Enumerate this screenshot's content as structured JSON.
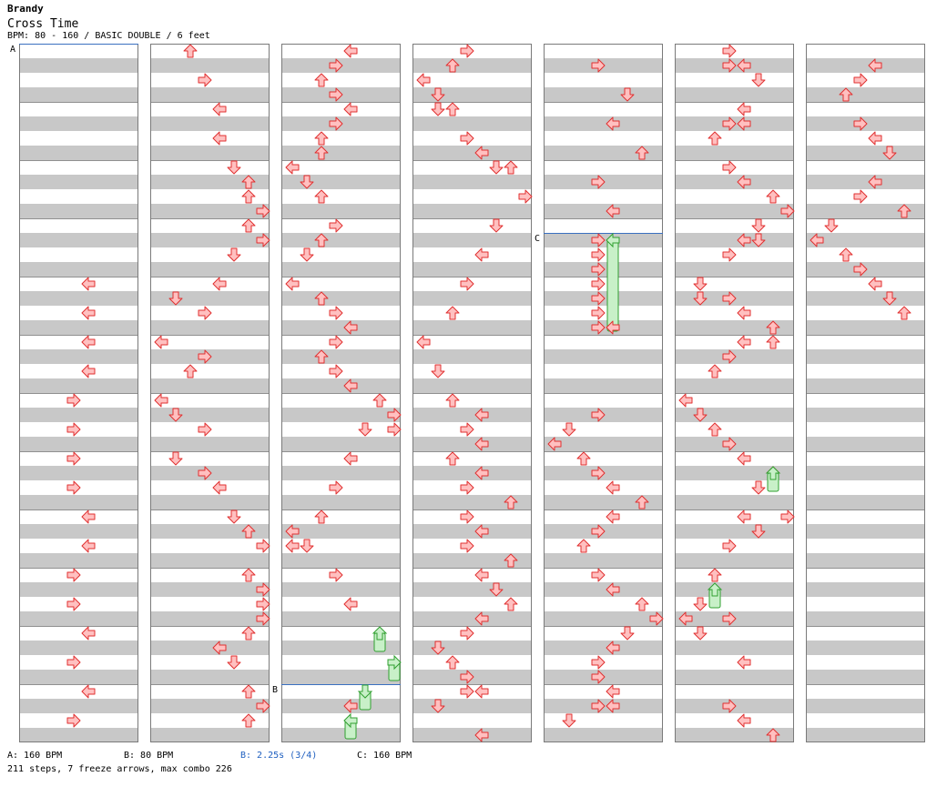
{
  "song": {
    "artist": "Brandy",
    "title": "Cross Time",
    "meta": "BPM: 80 - 160 / BASIC DOUBLE / 6 feet"
  },
  "colors": {
    "stripe": "#c8c8c8",
    "border": "#7a7a7a",
    "marker_line": "#3a70c0",
    "arrow_fill": "#ffc0c0",
    "arrow_stroke": "#e03030",
    "freeze_fill": "#c8f0c8",
    "freeze_stroke": "#30a030",
    "footer_blue": "#2060c0"
  },
  "icons": {
    "step": "arrow-icon",
    "freeze": "freeze-arrow-icon"
  },
  "chart": {
    "columns": 7,
    "rows_per_column": 96,
    "lanes": 8,
    "lane_directions": [
      "left",
      "down",
      "up",
      "right",
      "left",
      "down",
      "up",
      "right"
    ],
    "markers": [
      {
        "label": "A",
        "column": 0,
        "row": 0
      },
      {
        "label": "C",
        "column": 4,
        "row": 26
      },
      {
        "label": "B",
        "column": 2,
        "row": 88
      }
    ],
    "notes": [
      [
        [
          0,
          32,
          4
        ],
        [
          0,
          36,
          4
        ],
        [
          0,
          40,
          4
        ],
        [
          0,
          44,
          4
        ],
        [
          0,
          48,
          3
        ],
        [
          0,
          52,
          3
        ],
        [
          0,
          56,
          3
        ],
        [
          0,
          60,
          3
        ],
        [
          0,
          64,
          4
        ],
        [
          0,
          68,
          4
        ],
        [
          0,
          72,
          3
        ],
        [
          0,
          76,
          3
        ],
        [
          0,
          80,
          4
        ],
        [
          0,
          84,
          3
        ],
        [
          0,
          88,
          4
        ],
        [
          0,
          92,
          3
        ]
      ],
      [
        [
          1,
          0,
          2
        ],
        [
          1,
          4,
          3
        ],
        [
          1,
          8,
          4
        ],
        [
          1,
          12,
          4
        ],
        [
          1,
          16,
          5
        ],
        [
          1,
          18,
          6
        ],
        [
          1,
          20,
          6
        ],
        [
          1,
          22,
          7
        ],
        [
          1,
          24,
          6
        ],
        [
          1,
          26,
          7
        ],
        [
          1,
          28,
          5
        ],
        [
          1,
          32,
          4
        ],
        [
          1,
          34,
          1
        ],
        [
          1,
          36,
          3
        ],
        [
          1,
          40,
          0
        ],
        [
          1,
          42,
          3
        ],
        [
          1,
          44,
          2
        ],
        [
          1,
          48,
          0
        ],
        [
          1,
          50,
          1
        ],
        [
          1,
          52,
          3
        ],
        [
          1,
          56,
          1
        ],
        [
          1,
          58,
          3
        ],
        [
          1,
          60,
          4
        ],
        [
          1,
          64,
          5
        ],
        [
          1,
          66,
          6
        ],
        [
          1,
          68,
          7
        ],
        [
          1,
          72,
          6
        ],
        [
          1,
          74,
          7
        ],
        [
          1,
          76,
          7
        ],
        [
          1,
          78,
          7
        ],
        [
          1,
          80,
          6
        ],
        [
          1,
          82,
          4
        ],
        [
          1,
          84,
          5
        ],
        [
          1,
          88,
          6
        ],
        [
          1,
          90,
          7
        ],
        [
          1,
          92,
          6
        ]
      ],
      [
        [
          2,
          0,
          4
        ],
        [
          2,
          2,
          3
        ],
        [
          2,
          4,
          2
        ],
        [
          2,
          6,
          3
        ],
        [
          2,
          8,
          4
        ],
        [
          2,
          10,
          3
        ],
        [
          2,
          12,
          2
        ],
        [
          2,
          14,
          2
        ],
        [
          2,
          16,
          0
        ],
        [
          2,
          18,
          1
        ],
        [
          2,
          20,
          2
        ],
        [
          2,
          24,
          3
        ],
        [
          2,
          26,
          2
        ],
        [
          2,
          28,
          1
        ],
        [
          2,
          32,
          0
        ],
        [
          2,
          34,
          2
        ],
        [
          2,
          36,
          3
        ],
        [
          2,
          38,
          4
        ],
        [
          2,
          40,
          3
        ],
        [
          2,
          42,
          2
        ],
        [
          2,
          44,
          3
        ],
        [
          2,
          46,
          4
        ],
        [
          2,
          48,
          6
        ],
        [
          2,
          50,
          7
        ],
        [
          2,
          52,
          5
        ],
        [
          2,
          52,
          7
        ],
        [
          2,
          56,
          4
        ],
        [
          2,
          60,
          3
        ],
        [
          2,
          64,
          2
        ],
        [
          2,
          66,
          0
        ],
        [
          2,
          68,
          0
        ],
        [
          2,
          68,
          1
        ],
        [
          2,
          72,
          3
        ],
        [
          2,
          76,
          4
        ],
        [
          2,
          90,
          4
        ]
      ],
      [
        [
          3,
          0,
          3
        ],
        [
          3,
          2,
          2
        ],
        [
          3,
          4,
          0
        ],
        [
          3,
          6,
          1
        ],
        [
          3,
          8,
          1
        ],
        [
          3,
          8,
          2
        ],
        [
          3,
          12,
          3
        ],
        [
          3,
          14,
          4
        ],
        [
          3,
          16,
          5
        ],
        [
          3,
          16,
          6
        ],
        [
          3,
          20,
          7
        ],
        [
          3,
          24,
          5
        ],
        [
          3,
          28,
          4
        ],
        [
          3,
          32,
          3
        ],
        [
          3,
          36,
          2
        ],
        [
          3,
          40,
          0
        ],
        [
          3,
          44,
          1
        ],
        [
          3,
          48,
          2
        ],
        [
          3,
          50,
          4
        ],
        [
          3,
          52,
          3
        ],
        [
          3,
          54,
          4
        ],
        [
          3,
          56,
          2
        ],
        [
          3,
          58,
          4
        ],
        [
          3,
          60,
          3
        ],
        [
          3,
          62,
          6
        ],
        [
          3,
          64,
          3
        ],
        [
          3,
          66,
          4
        ],
        [
          3,
          68,
          3
        ],
        [
          3,
          70,
          6
        ],
        [
          3,
          72,
          4
        ],
        [
          3,
          74,
          5
        ],
        [
          3,
          76,
          6
        ],
        [
          3,
          78,
          4
        ],
        [
          3,
          80,
          3
        ],
        [
          3,
          82,
          1
        ],
        [
          3,
          84,
          2
        ],
        [
          3,
          86,
          3
        ],
        [
          3,
          88,
          3
        ],
        [
          3,
          88,
          4
        ],
        [
          3,
          90,
          1
        ],
        [
          3,
          94,
          4
        ]
      ],
      [
        [
          4,
          2,
          3
        ],
        [
          4,
          6,
          5
        ],
        [
          4,
          10,
          4
        ],
        [
          4,
          14,
          6
        ],
        [
          4,
          18,
          3
        ],
        [
          4,
          22,
          4
        ],
        [
          4,
          26,
          3
        ],
        [
          4,
          28,
          3
        ],
        [
          4,
          30,
          3
        ],
        [
          4,
          32,
          3
        ],
        [
          4,
          34,
          3
        ],
        [
          4,
          36,
          3
        ],
        [
          4,
          38,
          3
        ],
        [
          4,
          38,
          4
        ],
        [
          4,
          50,
          3
        ],
        [
          4,
          52,
          1
        ],
        [
          4,
          54,
          0
        ],
        [
          4,
          56,
          2
        ],
        [
          4,
          58,
          3
        ],
        [
          4,
          60,
          4
        ],
        [
          4,
          62,
          6
        ],
        [
          4,
          64,
          4
        ],
        [
          4,
          66,
          3
        ],
        [
          4,
          68,
          2
        ],
        [
          4,
          72,
          3
        ],
        [
          4,
          74,
          4
        ],
        [
          4,
          76,
          6
        ],
        [
          4,
          78,
          7
        ],
        [
          4,
          80,
          5
        ],
        [
          4,
          82,
          4
        ],
        [
          4,
          84,
          3
        ],
        [
          4,
          86,
          3
        ],
        [
          4,
          88,
          4
        ],
        [
          4,
          90,
          3
        ],
        [
          4,
          90,
          4
        ],
        [
          4,
          92,
          1
        ]
      ],
      [
        [
          5,
          0,
          3
        ],
        [
          5,
          2,
          3
        ],
        [
          5,
          2,
          4
        ],
        [
          5,
          4,
          5
        ],
        [
          5,
          8,
          4
        ],
        [
          5,
          10,
          3
        ],
        [
          5,
          10,
          4
        ],
        [
          5,
          12,
          2
        ],
        [
          5,
          16,
          3
        ],
        [
          5,
          18,
          4
        ],
        [
          5,
          20,
          6
        ],
        [
          5,
          22,
          7
        ],
        [
          5,
          24,
          5
        ],
        [
          5,
          26,
          4
        ],
        [
          5,
          26,
          5
        ],
        [
          5,
          28,
          3
        ],
        [
          5,
          32,
          1
        ],
        [
          5,
          34,
          1
        ],
        [
          5,
          34,
          3
        ],
        [
          5,
          36,
          4
        ],
        [
          5,
          38,
          6
        ],
        [
          5,
          40,
          4
        ],
        [
          5,
          40,
          6
        ],
        [
          5,
          42,
          3
        ],
        [
          5,
          44,
          2
        ],
        [
          5,
          48,
          0
        ],
        [
          5,
          50,
          1
        ],
        [
          5,
          52,
          2
        ],
        [
          5,
          54,
          3
        ],
        [
          5,
          56,
          4
        ],
        [
          5,
          58,
          6
        ],
        [
          5,
          60,
          5
        ],
        [
          5,
          64,
          4
        ],
        [
          5,
          64,
          7
        ],
        [
          5,
          66,
          5
        ],
        [
          5,
          68,
          3
        ],
        [
          5,
          72,
          2
        ],
        [
          5,
          76,
          1
        ],
        [
          5,
          78,
          0
        ],
        [
          5,
          78,
          3
        ],
        [
          5,
          80,
          1
        ],
        [
          5,
          84,
          4
        ],
        [
          5,
          90,
          3
        ],
        [
          5,
          92,
          4
        ],
        [
          5,
          94,
          6
        ]
      ],
      [
        [
          6,
          2,
          4
        ],
        [
          6,
          4,
          3
        ],
        [
          6,
          6,
          2
        ],
        [
          6,
          10,
          3
        ],
        [
          6,
          12,
          4
        ],
        [
          6,
          14,
          5
        ],
        [
          6,
          18,
          4
        ],
        [
          6,
          20,
          3
        ],
        [
          6,
          22,
          6
        ],
        [
          6,
          24,
          1
        ],
        [
          6,
          26,
          0
        ],
        [
          6,
          28,
          2
        ],
        [
          6,
          30,
          3
        ],
        [
          6,
          32,
          4
        ],
        [
          6,
          34,
          5
        ],
        [
          6,
          36,
          6
        ]
      ]
    ],
    "freezes": [
      [
        4,
        26,
        38,
        4
      ],
      [
        2,
        80,
        82,
        6
      ],
      [
        2,
        84,
        86,
        7
      ],
      [
        2,
        88,
        90,
        5
      ],
      [
        2,
        92,
        94,
        4
      ],
      [
        5,
        58,
        60,
        6
      ],
      [
        5,
        74,
        76,
        2
      ]
    ]
  },
  "footer": {
    "a_bpm": "A: 160 BPM",
    "b_bpm": "B: 80 BPM",
    "b_stop": "B: 2.25s (3/4)",
    "c_bpm": "C: 160 BPM",
    "stats": "211 steps, 7 freeze arrows, max combo 226"
  }
}
